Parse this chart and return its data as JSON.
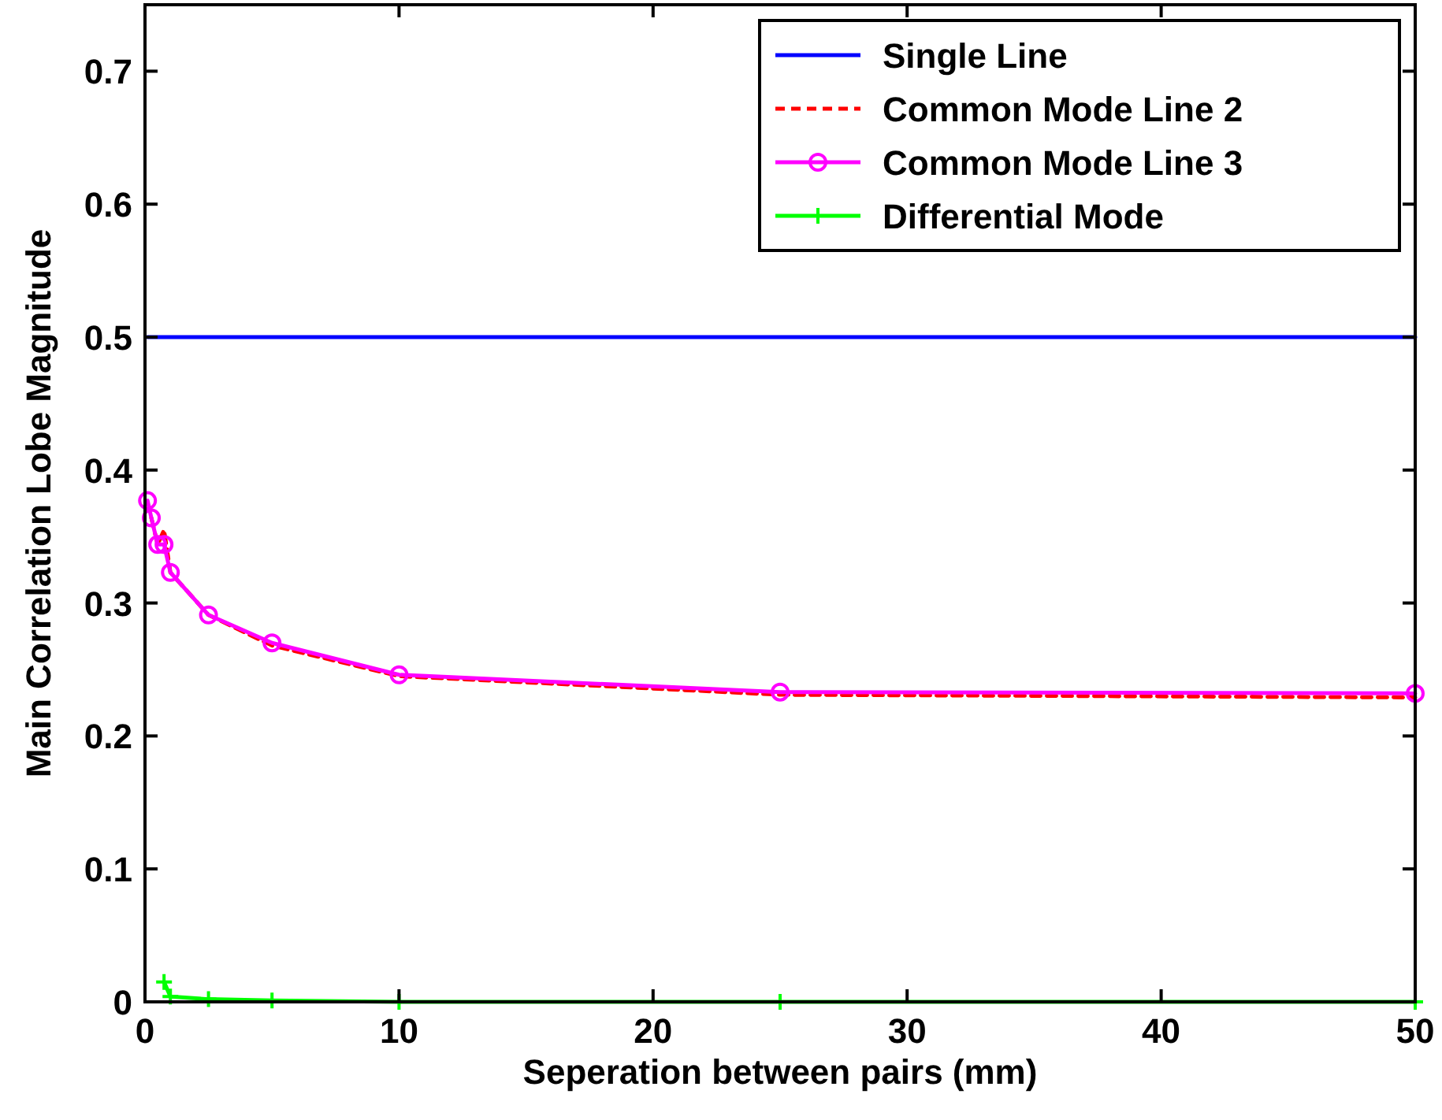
{
  "chart_data": {
    "type": "line",
    "xlabel": "Seperation between pairs (mm)",
    "ylabel": "Main Correlation Lobe Magnitude",
    "x": [
      0.1,
      0.25,
      0.5,
      0.75,
      1,
      2.5,
      5,
      10,
      25,
      50
    ],
    "series": [
      {
        "name": "Single Line",
        "color": "#0000ff",
        "values": [
          0.5,
          0.5,
          0.5,
          0.5,
          0.5,
          0.5,
          0.5,
          0.5,
          0.5,
          0.5
        ],
        "marker": "none",
        "line_style": "solid"
      },
      {
        "name": "Common Mode Line 2",
        "color": "#ff0000",
        "values": [
          null,
          0.364,
          0.344,
          0.355,
          0.323,
          0.291,
          0.268,
          0.245,
          0.231,
          0.229
        ],
        "marker": "none",
        "line_style": "dashed"
      },
      {
        "name": "Common Mode Line 3",
        "color": "#ff00ff",
        "values": [
          0.377,
          0.364,
          0.344,
          0.344,
          0.323,
          0.291,
          0.27,
          0.246,
          0.233,
          0.232
        ],
        "marker": "circle",
        "line_style": "solid"
      },
      {
        "name": "Differential Mode",
        "color": "#00ff00",
        "values": [
          null,
          null,
          null,
          0.015,
          0.004,
          0.002,
          0.001,
          0,
          0,
          0
        ],
        "marker": "cross",
        "line_style": "solid"
      }
    ],
    "xlim": [
      0,
      50
    ],
    "xticks": [
      0,
      10,
      20,
      30,
      40,
      50
    ],
    "ylim": [
      0,
      0.75
    ],
    "yticks": [
      0,
      0.1,
      0.2,
      0.3,
      0.4,
      0.5,
      0.6,
      0.7
    ],
    "legend": "top right",
    "grid": false
  }
}
